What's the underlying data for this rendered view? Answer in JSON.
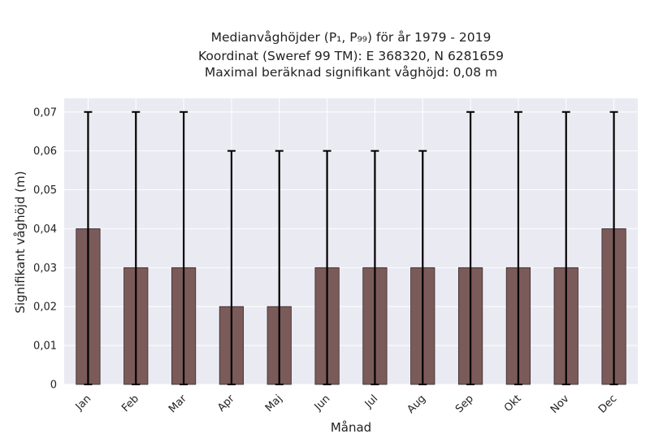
{
  "chart_data": {
    "type": "bar",
    "title_lines": [
      "Medianvåghöjder (P₁, P₉₉) för år 1979 - 2019",
      "Koordinat (Sweref 99 TM): E 368320, N 6281659",
      "Maximal beräknad signifikant våghöjd: 0,08 m"
    ],
    "xlabel": "Månad",
    "ylabel": "Signifikant våghöjd (m)",
    "categories": [
      "Jan",
      "Feb",
      "Mar",
      "Apr",
      "Maj",
      "Jun",
      "Jul",
      "Aug",
      "Sep",
      "Okt",
      "Nov",
      "Dec"
    ],
    "values": [
      0.04,
      0.03,
      0.03,
      0.02,
      0.02,
      0.03,
      0.03,
      0.03,
      0.03,
      0.03,
      0.03,
      0.04
    ],
    "error_low": [
      0,
      0,
      0,
      0,
      0,
      0,
      0,
      0,
      0,
      0,
      0,
      0
    ],
    "error_high": [
      0.07,
      0.07,
      0.07,
      0.06,
      0.06,
      0.06,
      0.06,
      0.06,
      0.07,
      0.07,
      0.07,
      0.07
    ],
    "yticks": [
      0,
      0.01,
      0.02,
      0.03,
      0.04,
      0.05,
      0.06,
      0.07
    ],
    "ytick_labels": [
      "0",
      "0,01",
      "0,02",
      "0,03",
      "0,04",
      "0,05",
      "0,06",
      "0,07"
    ],
    "ylim": [
      0,
      0.0735
    ],
    "grid": true,
    "bar_color": "#7b5a5a",
    "bar_edge_color": "#3a2a2a",
    "error_color": "#000000",
    "plot_background": "#eaeaf2",
    "grid_color": "#ffffff"
  }
}
